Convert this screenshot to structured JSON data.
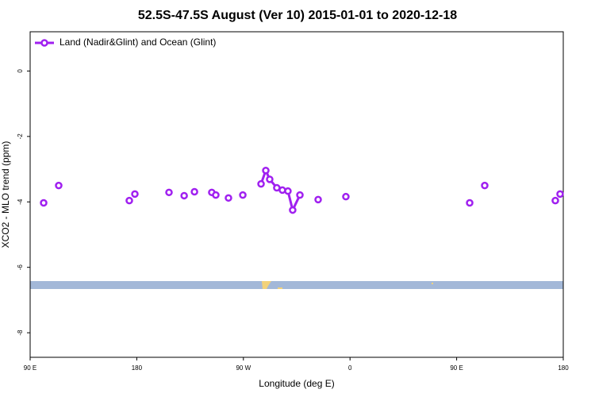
{
  "chart_data": {
    "type": "line",
    "title": "52.5S-47.5S August (Ver 10)   2015-01-01 to 2020-12-18",
    "x_label": "Longitude (deg E)",
    "y_label": "XCO2 - MLO trend (ppm)",
    "x": [
      101.4,
      null,
      114.1,
      null,
      173.7,
      null,
      178.4,
      null,
      207.2,
      null,
      220.0,
      null,
      228.7,
      null,
      243.3,
      null,
      246.7,
      null,
      257.4,
      null,
      269.5,
      null,
      284.9,
      288.9,
      292.2,
      298.2,
      302.9,
      307.6,
      311.6,
      317.7,
      null,
      333.1,
      null,
      356.5,
      null,
      461.0,
      null,
      473.7,
      null,
      533.3,
      null,
      537.3
    ],
    "series": [
      {
        "name": "Land (Nadir&Glint) and Ocean (Glint)",
        "color": "#a020f0",
        "values": [
          -4.03,
          null,
          -3.5,
          null,
          -3.96,
          null,
          -3.76,
          null,
          -3.71,
          null,
          -3.81,
          null,
          -3.69,
          null,
          -3.71,
          null,
          -3.79,
          null,
          -3.88,
          null,
          -3.79,
          null,
          -3.45,
          -3.04,
          -3.31,
          -3.57,
          -3.64,
          -3.67,
          -4.25,
          -3.79,
          null,
          -3.93,
          null,
          -3.84,
          null,
          -4.03,
          null,
          -3.5,
          null,
          -3.96,
          null,
          -3.76
        ]
      }
    ],
    "xlim": [
      90,
      540
    ],
    "xticks": [
      {
        "value": 90,
        "label": "90 E"
      },
      180,
      {
        "value": 270,
        "label": "90 W"
      },
      {
        "value": 360,
        "label": "0"
      },
      {
        "value": 450,
        "label": "90 E"
      },
      {
        "value": 540,
        "label": "180"
      }
    ],
    "ylim": [
      -8.75,
      1.2
    ],
    "yticks": [
      0,
      -2,
      -4,
      -6,
      -8
    ],
    "legend": "top-left"
  }
}
